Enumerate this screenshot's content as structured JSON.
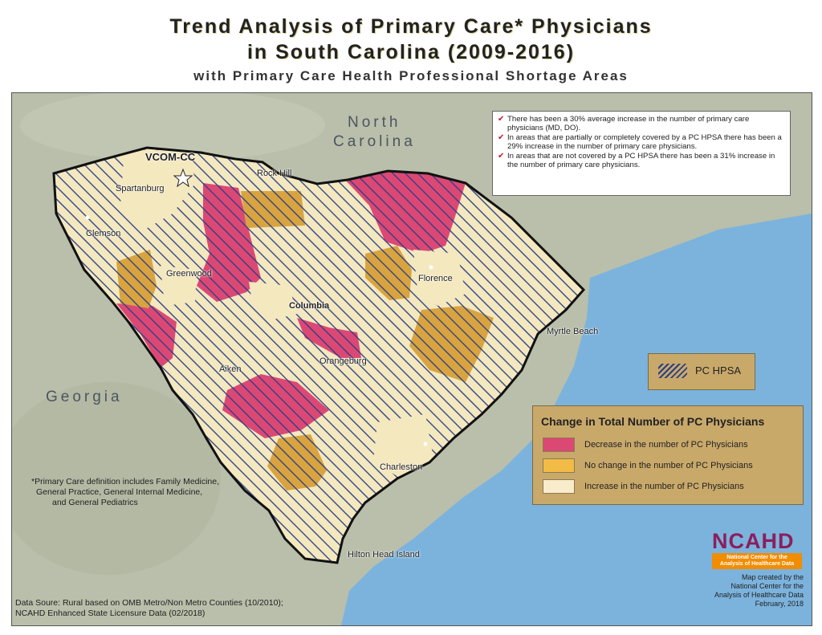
{
  "title": {
    "line1": "Trend Analysis of Primary Care* Physicians",
    "line2": "in South Carolina (2009-2016)",
    "subtitle": "with Primary Care Health Professional Shortage Areas"
  },
  "colors": {
    "decrease": "#dc4874",
    "no_change": "#d9a43f",
    "increase": "#f4e8bf",
    "hatch": "#2b3f86",
    "ocean": "#7cb3dd",
    "land": "#b9bfaa",
    "legend_bg": "#c9a96a"
  },
  "stats": [
    "There has been a 30% average increase in the number of primary care physicians (MD, DO).",
    "In areas that are partially or completely covered by a PC HPSA there has been a 29% increase in the number of primary care physicians.",
    "In areas that are not covered by a PC HPSA there has been a 31% increase in the number of primary care physicians."
  ],
  "hpsa_legend": {
    "label": "PC HPSA"
  },
  "change_legend": {
    "title": "Change in Total Number of PC Physicians",
    "items": [
      {
        "label": "Decrease in the number of PC Physicians"
      },
      {
        "label": "No change in the number of PC Physicians"
      },
      {
        "label": "Increase in the number of PC Physicians"
      }
    ]
  },
  "regions": {
    "north_carolina_line1": "North",
    "north_carolina_line2": "Carolina",
    "georgia": "Georgia"
  },
  "cities": {
    "vcom": "VCOM-CC",
    "spartanburg": "Spartanburg",
    "rock_hill": "Rock Hill",
    "clemson": "Clemson",
    "greenwood": "Greenwood",
    "columbia": "Columbia",
    "florence": "Florence",
    "myrtle_beach": "Myrtle Beach",
    "orangeburg": "Orangeburg",
    "aiken": "Aiken",
    "charleston": "Charleston",
    "hilton_head": "Hilton Head Island"
  },
  "footnote": {
    "line1": "*Primary Care definition includes Family Medicine,",
    "line2": "General Practice, General Internal Medicine,",
    "line3": "and General Pediatrics"
  },
  "data_source": {
    "line1": "Data Soure: Rural based on OMB Metro/Non Metro Counties (10/2010);",
    "line2": "NCAHD Enhanced State Licensure Data (02/2018)"
  },
  "logo": {
    "name": "NCAHD",
    "tagline": "National Center for the Analysis of Healthcare Data"
  },
  "credit": {
    "line1": "Map created by the",
    "line2": "National Center for the",
    "line3": "Analysis of Healthcare Data",
    "line4": "February, 2018"
  }
}
